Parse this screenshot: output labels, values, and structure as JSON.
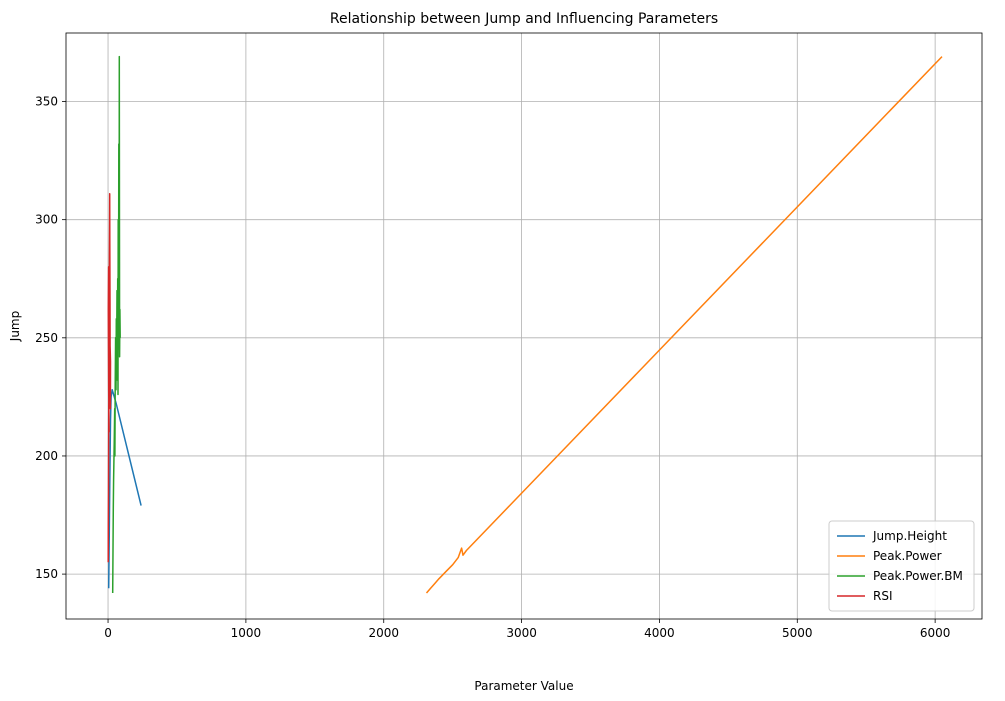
{
  "chart_data": {
    "type": "line",
    "title": "Relationship between Jump and Influencing Parameters",
    "xlabel": "Parameter Value",
    "ylabel": "Jump",
    "xlim": [
      -305,
      6340
    ],
    "ylim": [
      131,
      379
    ],
    "xticks": [
      0,
      1000,
      2000,
      3000,
      4000,
      5000,
      6000
    ],
    "yticks": [
      150,
      200,
      250,
      300,
      350
    ],
    "grid": true,
    "legend_position": "lower-right",
    "series": [
      {
        "name": "Jump.Height",
        "color": "#1f77b4",
        "points": [
          [
            5,
            144
          ],
          [
            8,
            160
          ],
          [
            12,
            185
          ],
          [
            15,
            200
          ],
          [
            18,
            215
          ],
          [
            22,
            225
          ],
          [
            30,
            228
          ],
          [
            40,
            226
          ],
          [
            60,
            222
          ],
          [
            240,
            179
          ]
        ]
      },
      {
        "name": "Peak.Power",
        "color": "#ff7f0e",
        "points": [
          [
            2310,
            142
          ],
          [
            2340,
            144
          ],
          [
            2370,
            146
          ],
          [
            2400,
            148
          ],
          [
            2450,
            151
          ],
          [
            2500,
            154
          ],
          [
            2540,
            157
          ],
          [
            2565,
            161
          ],
          [
            2575,
            158
          ],
          [
            2600,
            160
          ],
          [
            6050,
            369
          ]
        ]
      },
      {
        "name": "Peak.Power.BM",
        "color": "#2ca02c",
        "points": [
          [
            34,
            142
          ],
          [
            36,
            160
          ],
          [
            38,
            178
          ],
          [
            40,
            190
          ],
          [
            45,
            205
          ],
          [
            48,
            220
          ],
          [
            50,
            200
          ],
          [
            52,
            230
          ],
          [
            55,
            250
          ],
          [
            58,
            228
          ],
          [
            60,
            258
          ],
          [
            62,
            240
          ],
          [
            65,
            270
          ],
          [
            68,
            232
          ],
          [
            70,
            275
          ],
          [
            72,
            226
          ],
          [
            74,
            300
          ],
          [
            76,
            245
          ],
          [
            78,
            332
          ],
          [
            80,
            255
          ],
          [
            82,
            369
          ],
          [
            84,
            242
          ],
          [
            86,
            262
          ],
          [
            88,
            250
          ]
        ]
      },
      {
        "name": "RSI",
        "color": "#d62728",
        "points": [
          [
            1,
            155
          ],
          [
            2,
            170
          ],
          [
            3,
            185
          ],
          [
            4,
            200
          ],
          [
            5,
            215
          ],
          [
            6,
            235
          ],
          [
            7,
            250
          ],
          [
            8,
            262
          ],
          [
            9,
            272
          ],
          [
            10,
            285
          ],
          [
            11,
            300
          ],
          [
            12,
            311
          ],
          [
            13,
            290
          ],
          [
            14,
            265
          ],
          [
            15,
            245
          ],
          [
            16,
            228
          ],
          [
            17,
            220
          ],
          [
            18,
            240
          ],
          [
            10,
            258
          ],
          [
            6,
            268
          ],
          [
            4,
            280
          ],
          [
            2,
            262
          ],
          [
            3,
            245
          ],
          [
            5,
            228
          ],
          [
            8,
            210
          ]
        ]
      }
    ]
  }
}
